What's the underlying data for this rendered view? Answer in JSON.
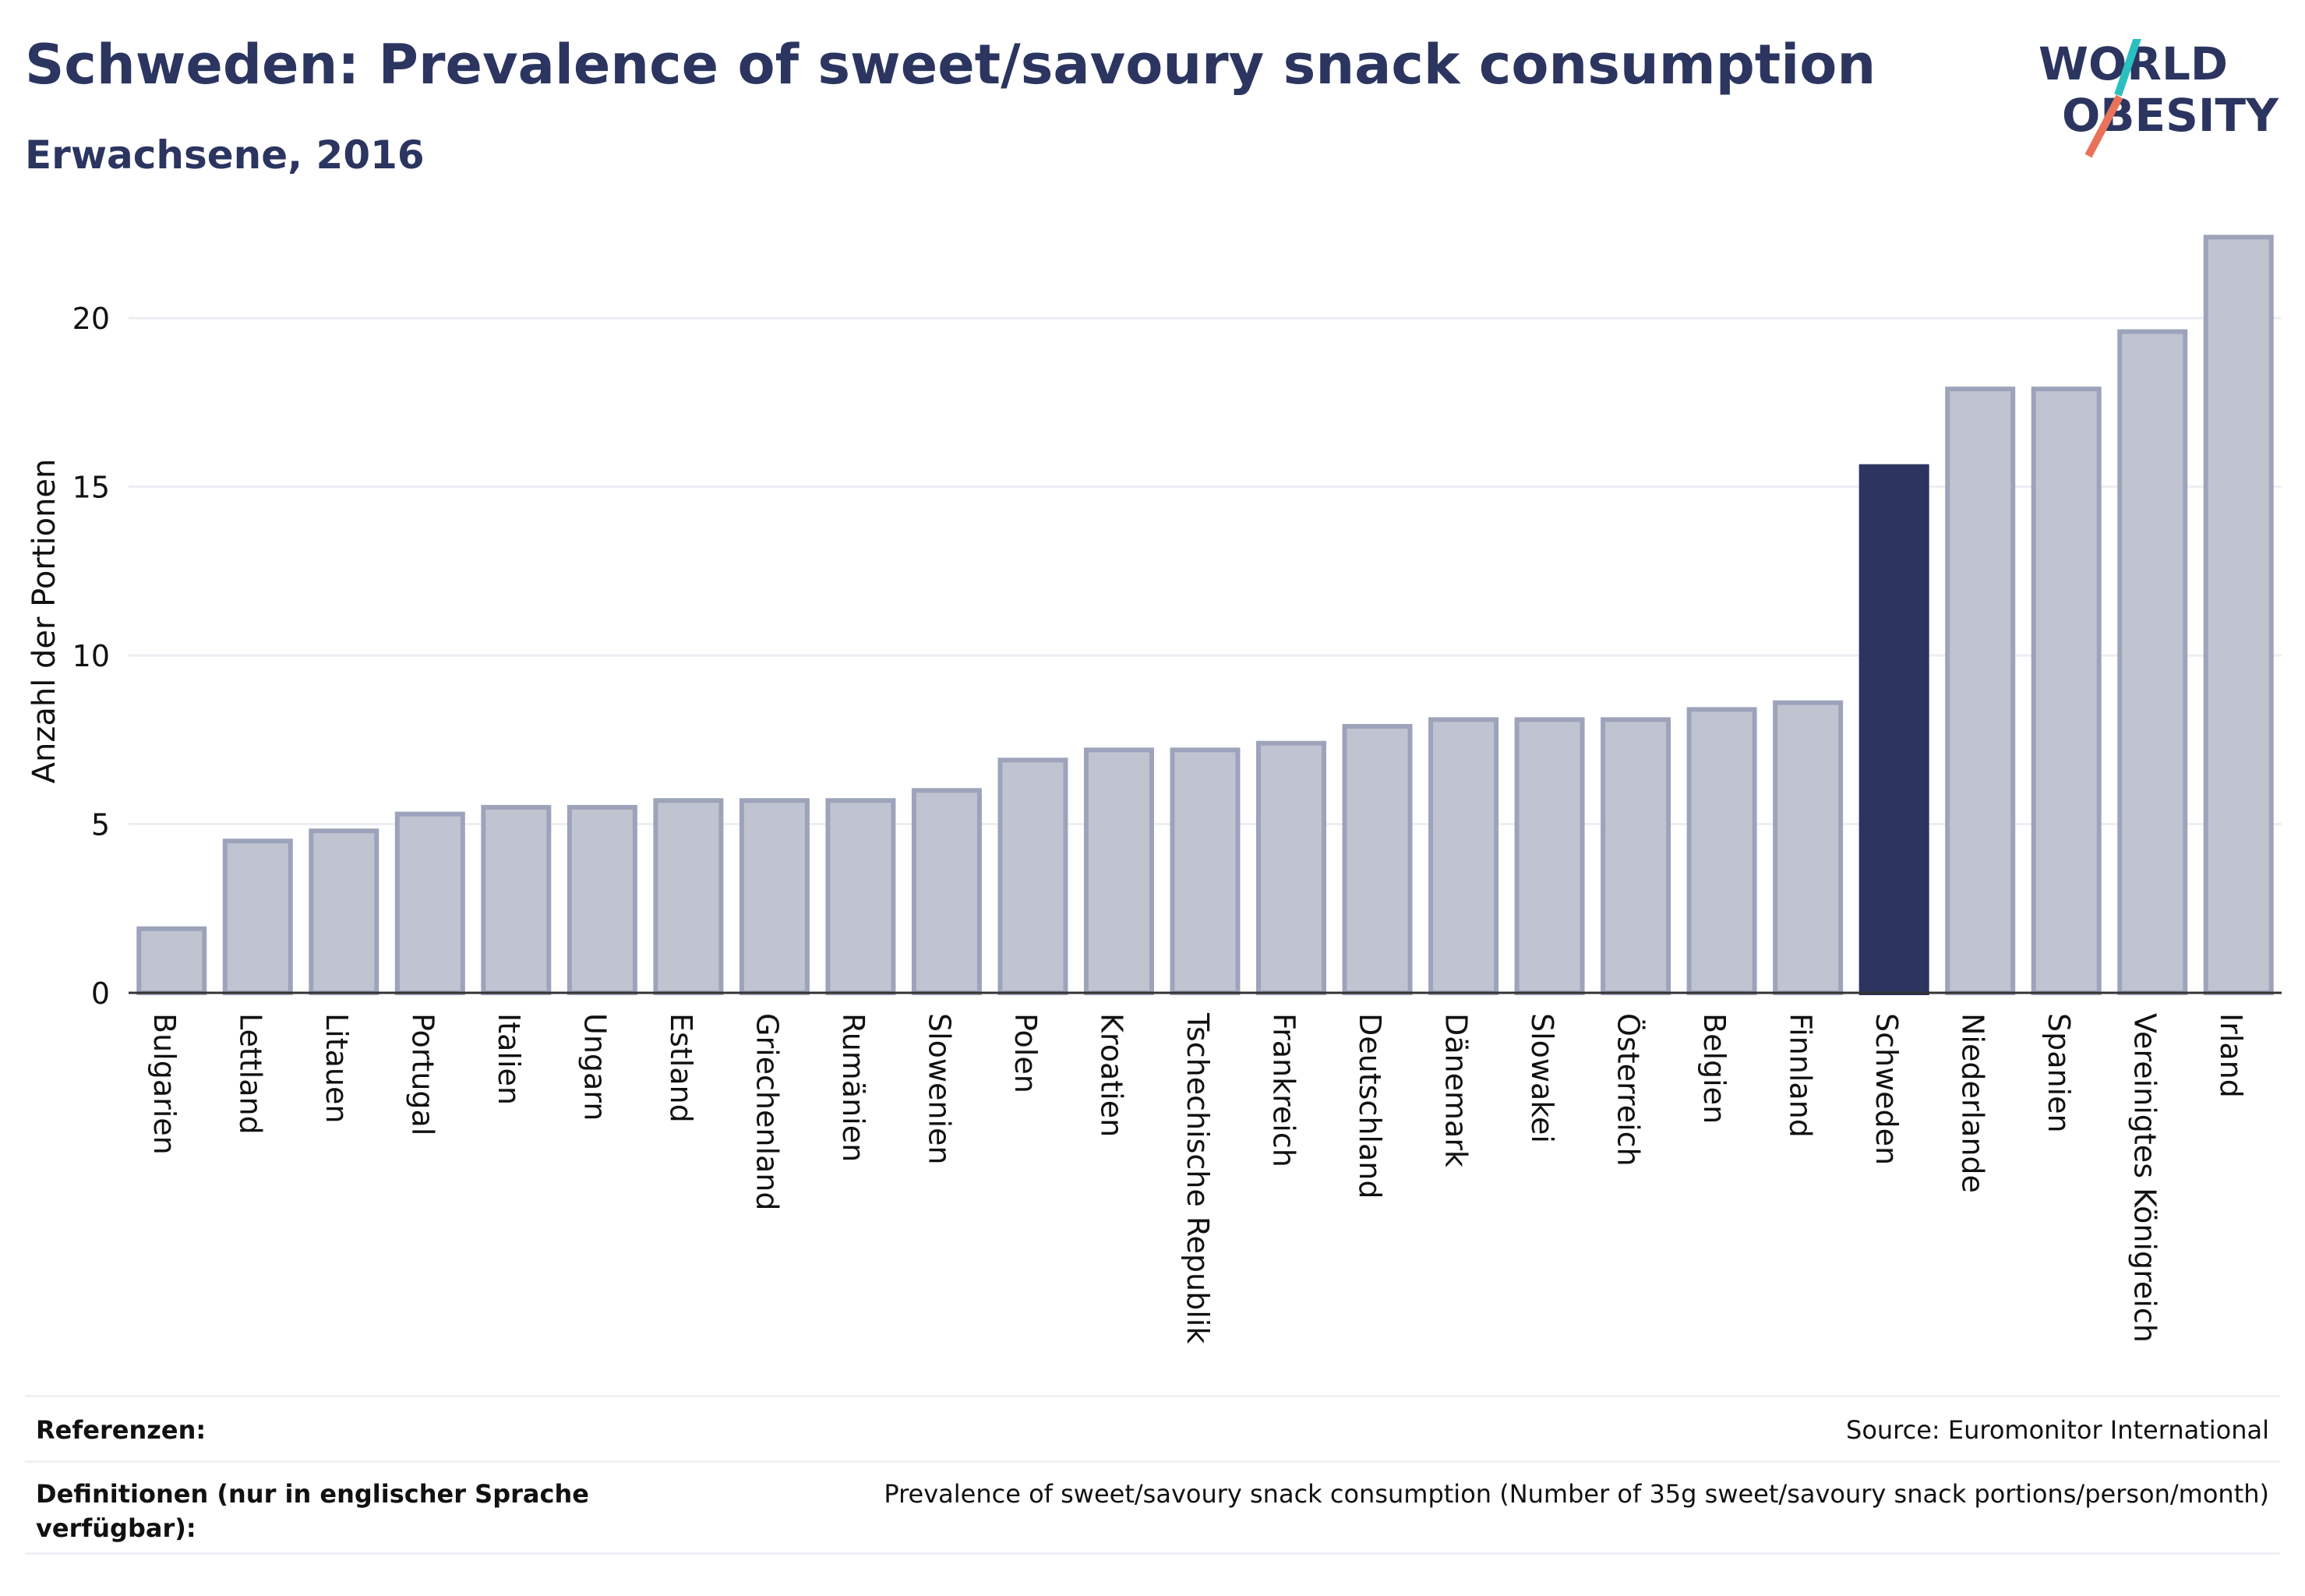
{
  "header": {
    "title": "Schweden: Prevalence of sweet/savoury snack consumption",
    "subtitle": "Erwachsene, 2016"
  },
  "logo": {
    "line1": "WORLD",
    "line2": "OBESITY",
    "accent_colors": [
      "#2bbfbf",
      "#e8735a"
    ]
  },
  "chart_data": {
    "type": "bar",
    "title": "Schweden: Prevalence of sweet/savoury snack consumption",
    "subtitle": "Erwachsene, 2016",
    "xlabel": "",
    "ylabel": "Anzahl der Portionen",
    "ylim": [
      0,
      22.5
    ],
    "yticks": [
      0,
      5,
      10,
      15,
      20
    ],
    "grid": true,
    "highlight_category": "Schweden",
    "colors": {
      "default_bar": "#c0c4d1",
      "default_border": "#9da3ba",
      "highlight_bar": "#2b3560"
    },
    "categories": [
      "Bulgarien",
      "Lettland",
      "Litauen",
      "Portugal",
      "Italien",
      "Ungarn",
      "Estland",
      "Griechenland",
      "Rumänien",
      "Slowenien",
      "Polen",
      "Kroatien",
      "Tschechische Republik",
      "Frankreich",
      "Deutschland",
      "Dänemark",
      "Slowakei",
      "Österreich",
      "Belgien",
      "Finnland",
      "Schweden",
      "Niederlande",
      "Spanien",
      "Vereinigtes Königreich",
      "Irland"
    ],
    "values": [
      1.9,
      4.5,
      4.8,
      5.3,
      5.5,
      5.5,
      5.7,
      5.7,
      5.7,
      6.0,
      6.9,
      7.2,
      7.2,
      7.4,
      7.9,
      8.1,
      8.1,
      8.1,
      8.4,
      8.6,
      15.6,
      17.9,
      17.9,
      19.6,
      22.4
    ]
  },
  "footer": {
    "references_label": "Referenzen:",
    "references_value": "Source: Euromonitor International",
    "definitions_label": "Definitionen (nur in englischer Sprache verfügbar):",
    "definitions_value": "Prevalence of sweet/savoury snack consumption (Number of 35g sweet/savoury snack portions/person/month)"
  }
}
